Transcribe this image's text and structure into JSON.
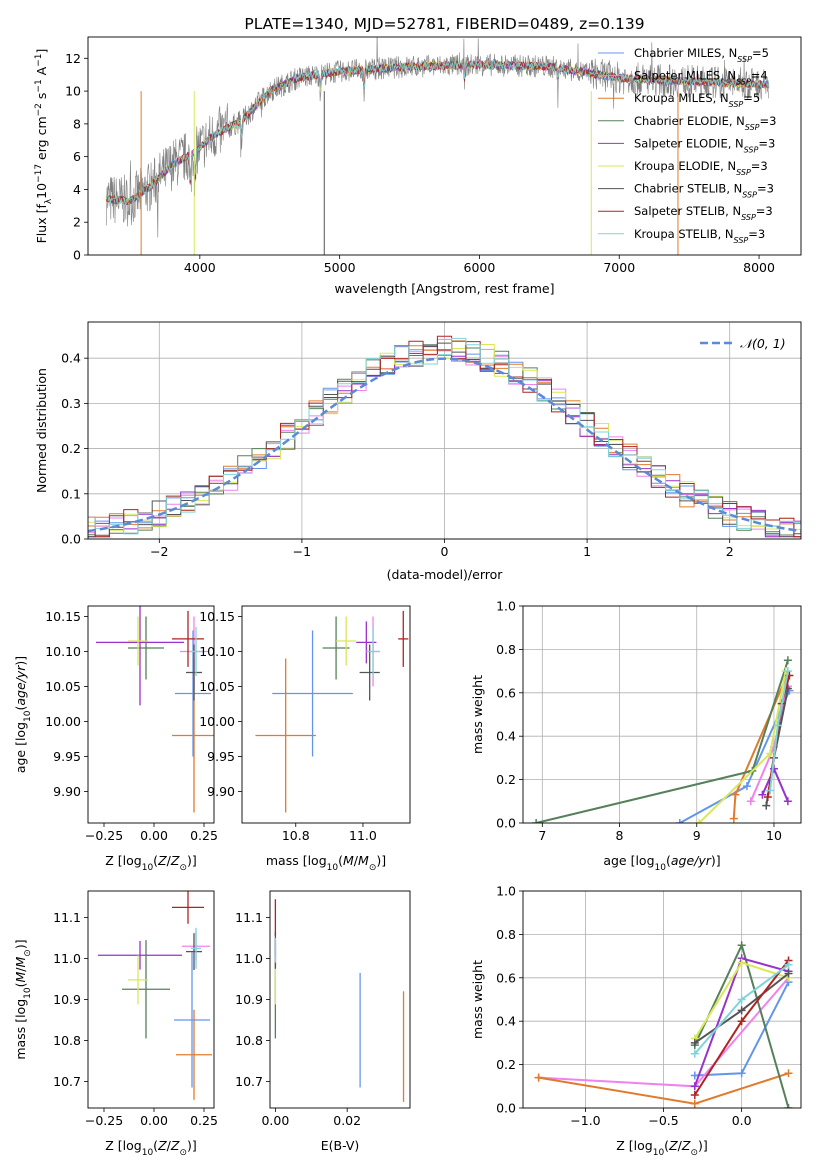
{
  "chart_data": [
    {
      "id": "spectrum",
      "type": "line",
      "title": "PLATE=1340, MJD=52781, FIBERID=0489, z=0.139",
      "xlabel": "wavelength [Angstrom, rest frame]",
      "ylabel": "Flux [f",
      "ylabel_parts": {
        "sub": "λ",
        "a": "10",
        "sup1": "−17",
        "b": " erg cm",
        "sup2": "−2",
        "c": " s",
        "sup3": "−1",
        "d": " A",
        "sup4": "−1",
        "e": "]"
      },
      "xlim": [
        3200,
        8300
      ],
      "ylim": [
        0,
        13.3
      ],
      "xticks": [
        4000,
        5000,
        6000,
        7000,
        8000
      ],
      "yticks": [
        0,
        2,
        4,
        6,
        8,
        10,
        12
      ],
      "legend": "right",
      "series": [
        {
          "name": "Chabrier MILES, N",
          "sub": "SSP",
          "tail": "=5",
          "color": "#6495ed",
          "x_range": [
            3330,
            8070
          ]
        },
        {
          "name": "Salpeter MILES, N",
          "sub": "SSP",
          "tail": "=4",
          "color": "#ee82ee",
          "x_range": [
            3330,
            8070
          ]
        },
        {
          "name": "Kroupa MILES, N",
          "sub": "SSP",
          "tail": "=5",
          "color": "#e07b2e",
          "x_range": [
            3330,
            8070
          ]
        },
        {
          "name": "Chabrier ELODIE, N",
          "sub": "SSP",
          "tail": "=3",
          "color": "#55805a",
          "x_range": [
            3330,
            8070
          ]
        },
        {
          "name": "Salpeter ELODIE, N",
          "sub": "SSP",
          "tail": "=3",
          "color": "#9932cc",
          "x_range": [
            3330,
            8070
          ]
        },
        {
          "name": "Kroupa ELODIE, N",
          "sub": "SSP",
          "tail": "=3",
          "color": "#d8e85a",
          "x_range": [
            3330,
            8070
          ]
        },
        {
          "name": "Chabrier STELIB, N",
          "sub": "SSP",
          "tail": "=3",
          "color": "#555555",
          "x_range": [
            3330,
            8070
          ]
        },
        {
          "name": "Salpeter STELIB, N",
          "sub": "SSP",
          "tail": "=3",
          "color": "#b22222",
          "x_range": [
            3330,
            8070
          ]
        },
        {
          "name": "Kroupa STELIB, N",
          "sub": "SSP",
          "tail": "=3",
          "color": "#7fd4d8",
          "x_range": [
            3330,
            8070
          ]
        }
      ],
      "data_color": "#808080",
      "continuum_points": [
        [
          3330,
          3.4
        ],
        [
          3500,
          3.3
        ],
        [
          3650,
          4.2
        ],
        [
          3800,
          5.5
        ],
        [
          3950,
          6.2
        ],
        [
          4100,
          7.3
        ],
        [
          4300,
          8.2
        ],
        [
          4500,
          10.0
        ],
        [
          4700,
          10.8
        ],
        [
          5000,
          11.2
        ],
        [
          5500,
          11.5
        ],
        [
          6000,
          11.6
        ],
        [
          6500,
          11.5
        ],
        [
          7000,
          10.8
        ],
        [
          7500,
          10.6
        ],
        [
          8070,
          10.4
        ]
      ],
      "dips": [
        [
          3933,
          2.5
        ],
        [
          3968,
          2.2
        ],
        [
          4300,
          1.2
        ],
        [
          4861,
          1.0
        ],
        [
          5175,
          1.5
        ],
        [
          5893,
          1.0
        ],
        [
          6563,
          0.6
        ]
      ]
    },
    {
      "id": "residuals",
      "type": "histogram",
      "xlabel": "(data-model)/error",
      "ylabel": "Normed distribution",
      "xlim": [
        -2.5,
        2.5
      ],
      "ylim": [
        0,
        0.48
      ],
      "xticks": [
        -2,
        -1,
        0,
        1,
        2
      ],
      "xtick_labels": [
        "−2",
        "−1",
        "0",
        "1",
        "2"
      ],
      "yticks": [
        0.0,
        0.1,
        0.2,
        0.3,
        0.4
      ],
      "ytick_labels": [
        "0.0",
        "0.1",
        "0.2",
        "0.3",
        "0.4"
      ],
      "grid": true,
      "legend": "top-right",
      "legend_label": "𝒩(0, 1)",
      "normal_curve_color": "#5b8ad6",
      "bin_width": 0.1
    },
    {
      "id": "age-vs-Z",
      "type": "scatter",
      "xlabel": "Z [log",
      "xlabel_parts": {
        "sub": "10",
        "a": "(",
        "i1": "Z",
        "b": "/",
        "i2": "Z",
        "sub2": "⊙",
        "c": ")]"
      },
      "ylabel": "age  [log",
      "ylabel_parts": {
        "sub": "10",
        "a": "(",
        "i1": "age/yr",
        "b": ")]"
      },
      "xlim": [
        -0.33,
        0.3
      ],
      "ylim": [
        9.855,
        10.165
      ],
      "xticks": [
        -0.25,
        0.0,
        0.25
      ],
      "xtick_labels": [
        "−0.25",
        "0.00",
        "0.25"
      ],
      "yticks": [
        9.9,
        9.95,
        10.0,
        10.05,
        10.1,
        10.15
      ],
      "ytick_labels": [
        "9.90",
        "9.95",
        "10.00",
        "10.05",
        "10.10",
        "10.15"
      ],
      "points": [
        {
          "x": 0.195,
          "y": 10.04,
          "xerr": 0.09,
          "yerr": 0.09,
          "color": "#6495ed"
        },
        {
          "x": 0.2,
          "y": 10.1,
          "xerr": 0.07,
          "yerr": 0.05,
          "color": "#ee82ee"
        },
        {
          "x": 0.2,
          "y": 9.98,
          "xerr": 0.11,
          "yerr": 0.11,
          "color": "#e07b2e"
        },
        {
          "x": -0.04,
          "y": 10.105,
          "xerr": 0.09,
          "yerr": 0.045,
          "color": "#55805a"
        },
        {
          "x": -0.07,
          "y": 10.113,
          "xerr": 0.22,
          "yerr": 0.09,
          "color": "#9932cc"
        },
        {
          "x": -0.08,
          "y": 10.115,
          "xerr": 0.05,
          "yerr": 0.035,
          "color": "#d8e85a"
        },
        {
          "x": 0.2,
          "y": 10.07,
          "xerr": 0.04,
          "yerr": 0.04,
          "color": "#555555"
        },
        {
          "x": 0.17,
          "y": 10.118,
          "xerr": 0.08,
          "yerr": 0.04,
          "color": "#b22222"
        },
        {
          "x": 0.21,
          "y": 10.1,
          "xerr": 0.035,
          "yerr": 0.035,
          "color": "#7fd4d8"
        }
      ]
    },
    {
      "id": "age-vs-mass",
      "type": "scatter",
      "xlabel": "mass [log",
      "xlabel_parts": {
        "sub": "10",
        "a": "(",
        "i1": "M",
        "b": "/",
        "i2": "M",
        "sub2": "⊙",
        "c": ")]"
      },
      "ylabel": "",
      "xlim": [
        10.64,
        11.14
      ],
      "ylim": [
        9.855,
        10.165
      ],
      "xticks": [
        10.8,
        11.0
      ],
      "xtick_labels": [
        "10.8",
        "11.0"
      ],
      "yticks": [
        9.9,
        9.95,
        10.0,
        10.05,
        10.1,
        10.15
      ],
      "ytick_labels": [
        "9.90",
        "9.95",
        "10.00",
        "10.05",
        "10.10",
        "10.15"
      ],
      "points": [
        {
          "x": 10.85,
          "y": 10.04,
          "xerr": 0.12,
          "yerr": 0.09,
          "color": "#6495ed"
        },
        {
          "x": 11.03,
          "y": 10.1,
          "xerr": 0.02,
          "yerr": 0.05,
          "color": "#ee82ee"
        },
        {
          "x": 10.77,
          "y": 9.98,
          "xerr": 0.09,
          "yerr": 0.11,
          "color": "#e07b2e"
        },
        {
          "x": 10.92,
          "y": 10.105,
          "xerr": 0.04,
          "yerr": 0.045,
          "color": "#55805a"
        },
        {
          "x": 11.01,
          "y": 10.113,
          "xerr": 0.03,
          "yerr": 0.03,
          "color": "#9932cc"
        },
        {
          "x": 10.95,
          "y": 10.115,
          "xerr": 0.03,
          "yerr": 0.035,
          "color": "#d8e85a"
        },
        {
          "x": 11.02,
          "y": 10.07,
          "xerr": 0.03,
          "yerr": 0.04,
          "color": "#555555"
        },
        {
          "x": 11.12,
          "y": 10.118,
          "xerr": 0.015,
          "yerr": 0.04,
          "color": "#b22222"
        },
        {
          "x": 11.03,
          "y": 10.1,
          "xerr": 0.02,
          "yerr": 0.035,
          "color": "#7fd4d8"
        }
      ]
    },
    {
      "id": "weight-vs-age",
      "type": "line",
      "xlabel": "age  [log",
      "xlabel_parts": {
        "sub": "10",
        "a": "(",
        "i1": "age/yr",
        "b": ")]"
      },
      "ylabel": "mass weight",
      "xlim": [
        6.75,
        10.35
      ],
      "ylim": [
        0,
        1.0
      ],
      "xticks": [
        7,
        8,
        9,
        10
      ],
      "xtick_labels": [
        "7",
        "8",
        "9",
        "10"
      ],
      "yticks": [
        0.0,
        0.2,
        0.4,
        0.6,
        0.8,
        1.0
      ],
      "ytick_labels": [
        "0.0",
        "0.2",
        "0.4",
        "0.6",
        "0.8",
        "1.0"
      ],
      "grid": true,
      "series": [
        {
          "color": "#6495ed",
          "x": [
            8.78,
            9.65,
            10.2
          ],
          "y": [
            0.0,
            0.17,
            0.61
          ]
        },
        {
          "color": "#ee82ee",
          "x": [
            9.7,
            10.0,
            10.18
          ],
          "y": [
            0.1,
            0.35,
            0.63
          ]
        },
        {
          "color": "#e07b2e",
          "x": [
            9.48,
            9.5,
            10.17
          ],
          "y": [
            0.02,
            0.13,
            0.68
          ]
        },
        {
          "color": "#55805a",
          "x": [
            6.92,
            9.72,
            10.18
          ],
          "y": [
            0.0,
            0.24,
            0.75
          ]
        },
        {
          "color": "#9932cc",
          "x": [
            9.85,
            10.0,
            10.18
          ],
          "y": [
            0.13,
            0.25,
            0.1
          ]
        },
        {
          "color": "#d8e85a",
          "x": [
            9.03,
            9.95,
            10.15
          ],
          "y": [
            0.0,
            0.32,
            0.7
          ]
        },
        {
          "color": "#555555",
          "x": [
            9.9,
            10.0,
            10.18
          ],
          "y": [
            0.08,
            0.3,
            0.62
          ]
        },
        {
          "color": "#b22222",
          "x": [
            9.92,
            10.1,
            10.2
          ],
          "y": [
            0.12,
            0.55,
            0.68
          ]
        },
        {
          "color": "#7fd4d8",
          "x": [
            9.95,
            10.05,
            10.18
          ],
          "y": [
            0.15,
            0.45,
            0.7
          ]
        }
      ]
    },
    {
      "id": "mass-vs-Z",
      "type": "scatter",
      "xlabel": "Z [log",
      "xlabel_parts": {
        "sub": "10",
        "a": "(",
        "i1": "Z",
        "b": "/",
        "i2": "Z",
        "sub2": "⊙",
        "c": ")]"
      },
      "ylabel": "mass [log",
      "ylabel_parts": {
        "sub": "10",
        "a": "(",
        "i1": "M",
        "b": "/",
        "i2": "M",
        "sub2": "⊙",
        "c": ")]"
      },
      "xlim": [
        -0.33,
        0.3
      ],
      "ylim": [
        10.635,
        11.165
      ],
      "xticks": [
        -0.25,
        0.0,
        0.25
      ],
      "xtick_labels": [
        "−0.25",
        "0.00",
        "0.25"
      ],
      "yticks": [
        10.7,
        10.8,
        10.9,
        11.0,
        11.1
      ],
      "ytick_labels": [
        "10.7",
        "10.8",
        "10.9",
        "11.0",
        "11.1"
      ],
      "points": [
        {
          "x": 0.19,
          "y": 10.85,
          "xerr": 0.09,
          "yerr": 0.165,
          "color": "#6495ed"
        },
        {
          "x": 0.21,
          "y": 11.03,
          "xerr": 0.07,
          "yerr": 0.035,
          "color": "#ee82ee"
        },
        {
          "x": 0.2,
          "y": 10.765,
          "xerr": 0.09,
          "yerr": 0.11,
          "color": "#e07b2e"
        },
        {
          "x": -0.04,
          "y": 10.925,
          "xerr": 0.12,
          "yerr": 0.12,
          "color": "#55805a"
        },
        {
          "x": -0.07,
          "y": 11.008,
          "xerr": 0.21,
          "yerr": 0.035,
          "color": "#9932cc"
        },
        {
          "x": -0.08,
          "y": 10.948,
          "xerr": 0.05,
          "yerr": 0.06,
          "color": "#d8e85a"
        },
        {
          "x": 0.2,
          "y": 11.017,
          "xerr": 0.04,
          "yerr": 0.045,
          "color": "#555555"
        },
        {
          "x": 0.17,
          "y": 11.125,
          "xerr": 0.08,
          "yerr": 0.04,
          "color": "#b22222"
        },
        {
          "x": 0.21,
          "y": 11.025,
          "xerr": 0.025,
          "yerr": 0.05,
          "color": "#7fd4d8"
        }
      ]
    },
    {
      "id": "mass-vs-ebv",
      "type": "scatter",
      "xlabel": "E(B-V)",
      "ylabel": "",
      "xlim": [
        -0.0015,
        0.0375
      ],
      "ylim": [
        10.635,
        11.165
      ],
      "xticks": [
        0.0,
        0.02
      ],
      "xtick_labels": [
        "0.00",
        "0.02"
      ],
      "yticks": [
        10.7,
        10.8,
        10.9,
        11.0,
        11.1
      ],
      "ytick_labels": [
        "10.7",
        "10.8",
        "10.9",
        "11.0",
        "11.1"
      ],
      "points": [
        {
          "x": 0.0236,
          "y": 10.825,
          "xerr": 0,
          "yerr": 0.14,
          "color": "#6495ed"
        },
        {
          "x": 0.0,
          "y": 11.03,
          "xerr": 0,
          "yerr": 0.02,
          "color": "#ee82ee"
        },
        {
          "x": 0.0357,
          "y": 10.785,
          "xerr": 0,
          "yerr": 0.135,
          "color": "#e07b2e"
        },
        {
          "x": 0.0,
          "y": 10.925,
          "xerr": 0,
          "yerr": 0.12,
          "color": "#55805a"
        },
        {
          "x": 0.0,
          "y": 11.008,
          "xerr": 0,
          "yerr": 0.03,
          "color": "#9932cc"
        },
        {
          "x": 0.0,
          "y": 10.948,
          "xerr": 0,
          "yerr": 0.06,
          "color": "#d8e85a"
        },
        {
          "x": 0.0,
          "y": 11.02,
          "xerr": 0,
          "yerr": 0.045,
          "color": "#555555"
        },
        {
          "x": 0.0,
          "y": 11.1,
          "xerr": 0,
          "yerr": 0.045,
          "color": "#b22222"
        },
        {
          "x": 0.0,
          "y": 11.02,
          "xerr": 0,
          "yerr": 0.03,
          "color": "#7fd4d8"
        }
      ]
    },
    {
      "id": "weight-vs-Z",
      "type": "line",
      "xlabel": "Z [log",
      "xlabel_parts": {
        "sub": "10",
        "a": "(",
        "i1": "Z",
        "b": "/",
        "i2": "Z",
        "sub2": "⊙",
        "c": ")]"
      },
      "ylabel": "mass weight",
      "xlim": [
        -1.4,
        0.38
      ],
      "ylim": [
        0,
        1.0
      ],
      "xticks": [
        -1.0,
        -0.5,
        0.0
      ],
      "xtick_labels": [
        "−1.0",
        "−0.5",
        "0.0"
      ],
      "yticks": [
        0.0,
        0.2,
        0.4,
        0.6,
        0.8,
        1.0
      ],
      "ytick_labels": [
        "0.0",
        "0.2",
        "0.4",
        "0.6",
        "0.8",
        "1.0"
      ],
      "grid": true,
      "series": [
        {
          "color": "#6495ed",
          "x": [
            -0.3,
            0.0,
            0.3
          ],
          "y": [
            0.15,
            0.16,
            0.58
          ]
        },
        {
          "color": "#ee82ee",
          "x": [
            -1.3,
            -0.3,
            0.3
          ],
          "y": [
            0.14,
            0.1,
            0.6
          ]
        },
        {
          "color": "#e07b2e",
          "x": [
            -1.3,
            -0.3,
            0.3
          ],
          "y": [
            0.14,
            0.02,
            0.16
          ]
        },
        {
          "color": "#55805a",
          "x": [
            -0.3,
            0.0,
            0.3
          ],
          "y": [
            0.29,
            0.75,
            0.0
          ]
        },
        {
          "color": "#9932cc",
          "x": [
            -0.3,
            0.0,
            0.3
          ],
          "y": [
            0.1,
            0.69,
            0.63
          ]
        },
        {
          "color": "#d8e85a",
          "x": [
            -0.3,
            0.0,
            0.3
          ],
          "y": [
            0.32,
            0.67,
            0.6
          ]
        },
        {
          "color": "#555555",
          "x": [
            -0.3,
            0.0,
            0.3
          ],
          "y": [
            0.3,
            0.45,
            0.62
          ]
        },
        {
          "color": "#b22222",
          "x": [
            -0.3,
            0.0,
            0.3
          ],
          "y": [
            0.06,
            0.4,
            0.68
          ]
        },
        {
          "color": "#7fd4d8",
          "x": [
            -0.3,
            0.0,
            0.3
          ],
          "y": [
            0.25,
            0.5,
            0.66
          ]
        }
      ]
    }
  ]
}
